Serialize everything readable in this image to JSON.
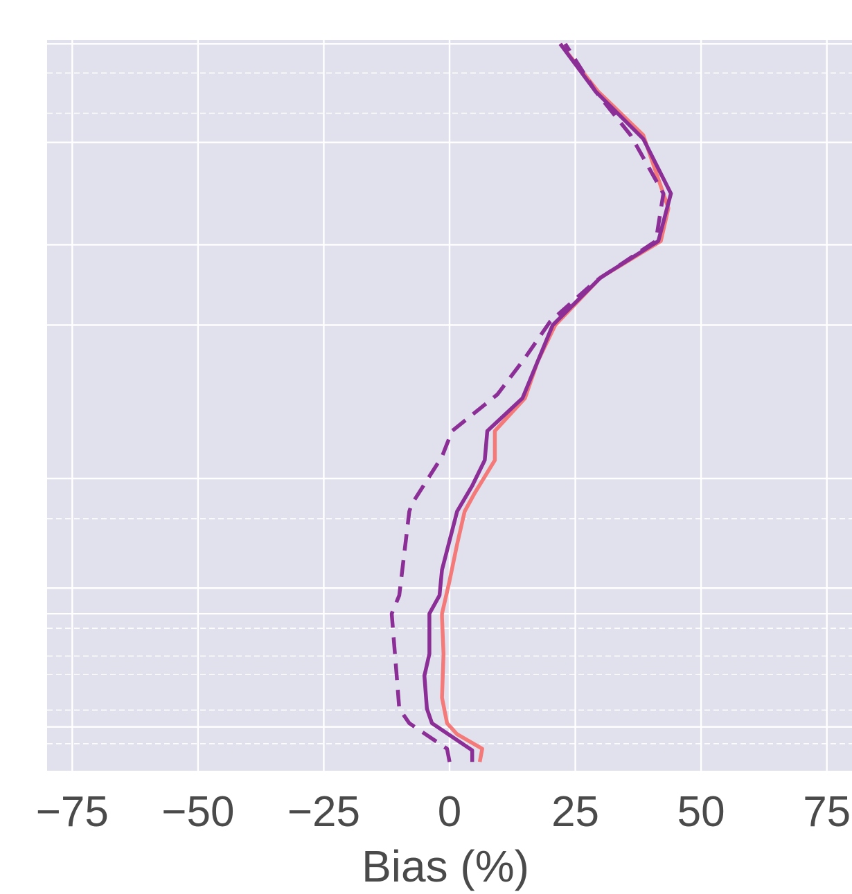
{
  "chart_data": {
    "type": "line",
    "xlabel": "Bias (%)",
    "xlim": [
      -80,
      80
    ],
    "xticks": [
      -75,
      -50,
      -25,
      0,
      25,
      50,
      75
    ],
    "xtick_labels": [
      "−75",
      "−50",
      "−25",
      "0",
      "25",
      "50",
      "75"
    ],
    "ylim": [
      0,
      100
    ],
    "ylabel": "",
    "y_axis_labels_visible": false,
    "background": "#e1e1ee",
    "grid": true,
    "legend": "none",
    "series": [
      {
        "color": "#f47a7a",
        "style": "solid",
        "points": [
          [
            6,
            1.2
          ],
          [
            6.5,
            3
          ],
          [
            1.5,
            5
          ],
          [
            -0.5,
            6.5
          ],
          [
            -1.5,
            10
          ],
          [
            -1.2,
            16
          ],
          [
            -1.5,
            21
          ],
          [
            -1.5,
            21.5
          ],
          [
            0,
            26
          ],
          [
            1.5,
            31
          ],
          [
            3,
            35.5
          ],
          [
            5,
            38
          ],
          [
            9,
            42.5
          ],
          [
            9,
            46.5
          ],
          [
            15,
            51
          ],
          [
            17.5,
            56
          ],
          [
            21,
            61
          ],
          [
            30,
            67.5
          ],
          [
            42,
            72.5
          ],
          [
            43.5,
            77
          ],
          [
            38.5,
            87
          ],
          [
            29.5,
            93
          ],
          [
            22,
            99.5
          ]
        ]
      },
      {
        "color": "#8b2f97",
        "style": "solid",
        "points": [
          [
            4.5,
            1.2
          ],
          [
            4.5,
            2.8
          ],
          [
            -3.5,
            6.5
          ],
          [
            -4.5,
            8.5
          ],
          [
            -5,
            13
          ],
          [
            -4,
            16
          ],
          [
            -4,
            21.5
          ],
          [
            -2,
            24
          ],
          [
            -1.5,
            27.5
          ],
          [
            1.5,
            35.5
          ],
          [
            4.5,
            39
          ],
          [
            7,
            42.5
          ],
          [
            7.5,
            46.5
          ],
          [
            14.5,
            51
          ],
          [
            17.5,
            56
          ],
          [
            20.5,
            61
          ],
          [
            30,
            67.5
          ],
          [
            41.5,
            72.5
          ],
          [
            44,
            79
          ],
          [
            38.5,
            86.5
          ],
          [
            29,
            93
          ],
          [
            22,
            99.5
          ]
        ]
      },
      {
        "color": "#8b2f97",
        "style": "dashed",
        "points": [
          [
            0,
            1.2
          ],
          [
            -0.5,
            3
          ],
          [
            -8,
            6.5
          ],
          [
            -10,
            8.5
          ],
          [
            -10.5,
            13
          ],
          [
            -11.5,
            21.5
          ],
          [
            -10,
            24
          ],
          [
            -8,
            35.5
          ],
          [
            -7.5,
            36.5
          ],
          [
            -1.5,
            43
          ],
          [
            0.5,
            46.5
          ],
          [
            9.5,
            51.5
          ],
          [
            15,
            56.5
          ],
          [
            20,
            61.5
          ],
          [
            29,
            67
          ],
          [
            41,
            72.5
          ],
          [
            42.5,
            79
          ],
          [
            36,
            87
          ],
          [
            29,
            93
          ],
          [
            23,
            99.5
          ]
        ]
      }
    ],
    "y_solid_gridlines": [
      6,
      21.5,
      25,
      40,
      61,
      72,
      86,
      99.5
    ],
    "y_dashed_gridlines": [
      3.7,
      8.3,
      13.2,
      15.7,
      19.5,
      34.5,
      90,
      95.5
    ]
  }
}
